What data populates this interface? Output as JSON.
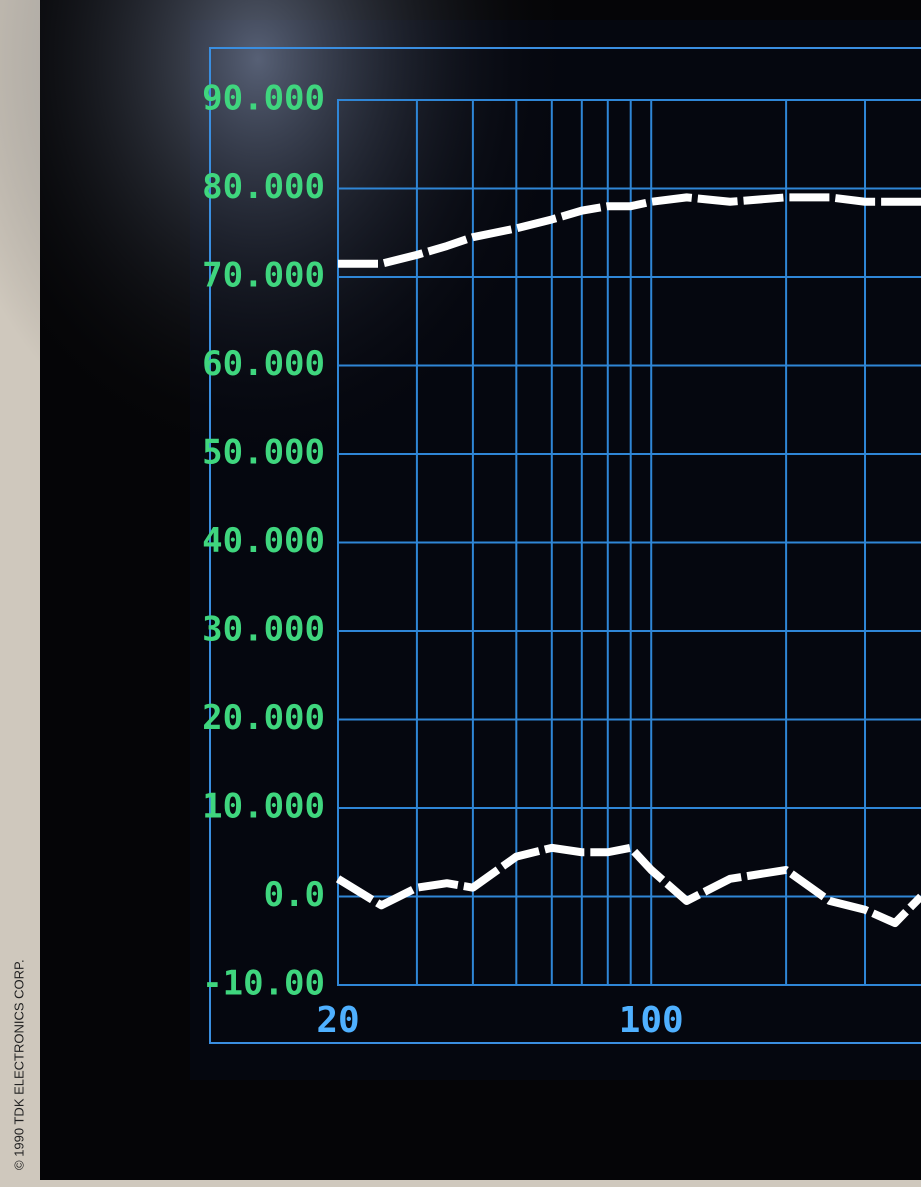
{
  "credit": "© 1990 TDK ELECTRONICS CORP.",
  "chart_data": {
    "type": "line",
    "x": [
      20,
      25,
      30,
      35,
      40,
      50,
      60,
      70,
      80,
      90,
      100,
      120,
      150,
      200,
      250,
      300,
      350,
      400
    ],
    "series": [
      {
        "color": "#ffffff",
        "values": [
          71.5,
          71.5,
          72.5,
          73.5,
          74.5,
          75.5,
          76.5,
          77.5,
          78,
          78,
          78.5,
          79,
          78.5,
          79,
          79,
          78.5,
          78.5,
          78.5
        ]
      },
      {
        "color": "#ffffff",
        "values": [
          2,
          -1,
          1,
          1.5,
          1,
          4.5,
          5.5,
          5,
          5,
          5.5,
          3,
          -0.5,
          2,
          3,
          -0.5,
          -1.5,
          -3,
          0
        ]
      }
    ],
    "xlim": [
      20,
      400
    ],
    "xticks": [
      20,
      100
    ],
    "xminor": [
      30,
      40,
      50,
      60,
      70,
      80,
      90,
      200,
      300
    ],
    "xscale": "log",
    "ylim": [
      -10,
      90
    ],
    "yticks": [
      {
        "value": 90,
        "label": "90.000"
      },
      {
        "value": 80,
        "label": "80.000"
      },
      {
        "value": 70,
        "label": "70.000"
      },
      {
        "value": 60,
        "label": "60.000"
      },
      {
        "value": 50,
        "label": "50.000"
      },
      {
        "value": 40,
        "label": "40.000"
      },
      {
        "value": 30,
        "label": "30.000"
      },
      {
        "value": 20,
        "label": "20.000"
      },
      {
        "value": 10,
        "label": "10.000"
      },
      {
        "value": 0,
        "label": "0.0"
      },
      {
        "value": -10,
        "label": "-10.00"
      }
    ],
    "grid": true,
    "grid_color": "#2f86d6",
    "ytick_color": "#3fd67e",
    "xtick_color": "#4fb0ff"
  }
}
